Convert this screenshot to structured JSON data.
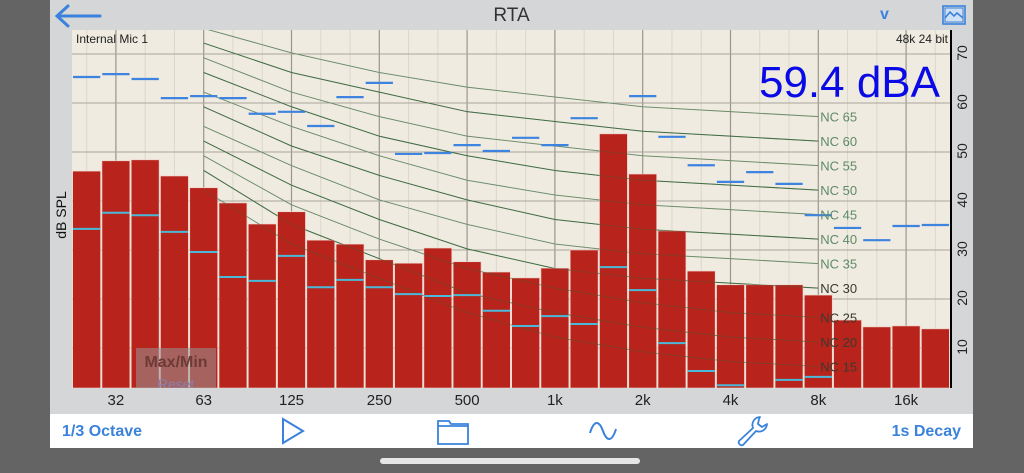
{
  "header": {
    "title": "RTA",
    "back_icon": "arrow-left-icon",
    "v_label": "v",
    "graph_icon": "image-graph-icon"
  },
  "plot": {
    "input_label": "Internal Mic 1",
    "format_label": "48k 24 bit",
    "level_readout": "59.4 dBA",
    "max_min_label": "Max/Min",
    "reset_label": "Reset"
  },
  "toolbar": {
    "resolution_label": "1/3 Octave",
    "play_icon": "play-icon",
    "folder_icon": "folder-icon",
    "wave_icon": "sine-wave-icon",
    "settings_icon": "wrench-icon",
    "decay_label": "1s Decay"
  },
  "colors": {
    "bar": "#b8241b",
    "max_line": "#3f83e0",
    "min_line": "#4ab8d8",
    "nc_curve": "#4d8a5c",
    "dba": "#0a0ae6",
    "accent": "#3a82dc"
  },
  "chart_data": {
    "type": "bar",
    "ylabel": "dB SPL",
    "ylim": [
      0,
      74
    ],
    "y_ticks": [
      "10",
      "20",
      "30",
      "40",
      "50",
      "60",
      "70"
    ],
    "x_ticks": [
      "32",
      "63",
      "125",
      "250",
      "500",
      "1k",
      "2k",
      "4k",
      "8k",
      "16k"
    ],
    "grid": true,
    "bands_hz": [
      25,
      31.5,
      40,
      50,
      63,
      80,
      100,
      125,
      160,
      200,
      250,
      315,
      400,
      500,
      630,
      800,
      1000,
      1250,
      1600,
      2000,
      2500,
      3150,
      4000,
      5000,
      6300,
      8000,
      10000,
      12500,
      16000,
      20000
    ],
    "series": [
      {
        "name": "level",
        "values": [
          46.1,
          48.2,
          48.4,
          45.1,
          42.7,
          39.6,
          35.3,
          37.8,
          32.0,
          31.2,
          28.0,
          27.3,
          30.4,
          27.6,
          25.5,
          24.3,
          26.3,
          30.0,
          53.7,
          45.5,
          33.9,
          25.7,
          22.9,
          22.9,
          22.9,
          20.8,
          15.7,
          14.3,
          14.5,
          13.9
        ]
      },
      {
        "name": "max",
        "values": [
          65.3,
          65.9,
          64.9,
          61.0,
          61.4,
          61.0,
          57.8,
          58.2,
          55.3,
          61.2,
          64.1,
          49.6,
          49.8,
          51.4,
          50.2,
          52.9,
          51.4,
          56.9,
          null,
          61.4,
          53.1,
          47.3,
          43.9,
          45.9,
          43.5,
          37.1,
          34.5,
          32.0,
          34.9,
          35.1
        ]
      },
      {
        "name": "min",
        "values": [
          34.3,
          37.6,
          37.1,
          33.7,
          29.6,
          24.5,
          23.7,
          28.8,
          22.4,
          23.9,
          22.4,
          21.0,
          20.6,
          20.8,
          17.6,
          14.5,
          16.5,
          14.9,
          26.5,
          21.8,
          11.0,
          5.3,
          2.4,
          null,
          3.5,
          4.1,
          null,
          null,
          null,
          null
        ]
      }
    ],
    "nc_curves": {
      "octave_hz": [
        63,
        125,
        250,
        500,
        1000,
        2000,
        4000,
        8000
      ],
      "curves": [
        {
          "name": "NC 65",
          "values": [
            80,
            75,
            71,
            68,
            66,
            64,
            63,
            62
          ]
        },
        {
          "name": "NC 60",
          "values": [
            77,
            71,
            67,
            63,
            61,
            59,
            58,
            57
          ]
        },
        {
          "name": "NC 55",
          "values": [
            74,
            67,
            62,
            58,
            56,
            54,
            53,
            52
          ]
        },
        {
          "name": "NC 50",
          "values": [
            71,
            64,
            58,
            54,
            51,
            49,
            48,
            47
          ]
        },
        {
          "name": "NC 45",
          "values": [
            67,
            60,
            54,
            49,
            46,
            44,
            43,
            42
          ]
        },
        {
          "name": "NC 40",
          "values": [
            64,
            56,
            50,
            45,
            41,
            39,
            38,
            37
          ]
        },
        {
          "name": "NC 35",
          "values": [
            60,
            52,
            45,
            40,
            36,
            34,
            33,
            32
          ]
        },
        {
          "name": "NC 30",
          "values": [
            57,
            48,
            41,
            35,
            31,
            29,
            28,
            27
          ]
        },
        {
          "name": "NC 25",
          "values": [
            54,
            44,
            37,
            31,
            27,
            24,
            22,
            21
          ]
        },
        {
          "name": "NC 20",
          "values": [
            51,
            40,
            33,
            26,
            22,
            19,
            17,
            16
          ]
        },
        {
          "name": "NC 15",
          "values": [
            47,
            36,
            29,
            22,
            17,
            14,
            12,
            11
          ]
        }
      ]
    }
  }
}
